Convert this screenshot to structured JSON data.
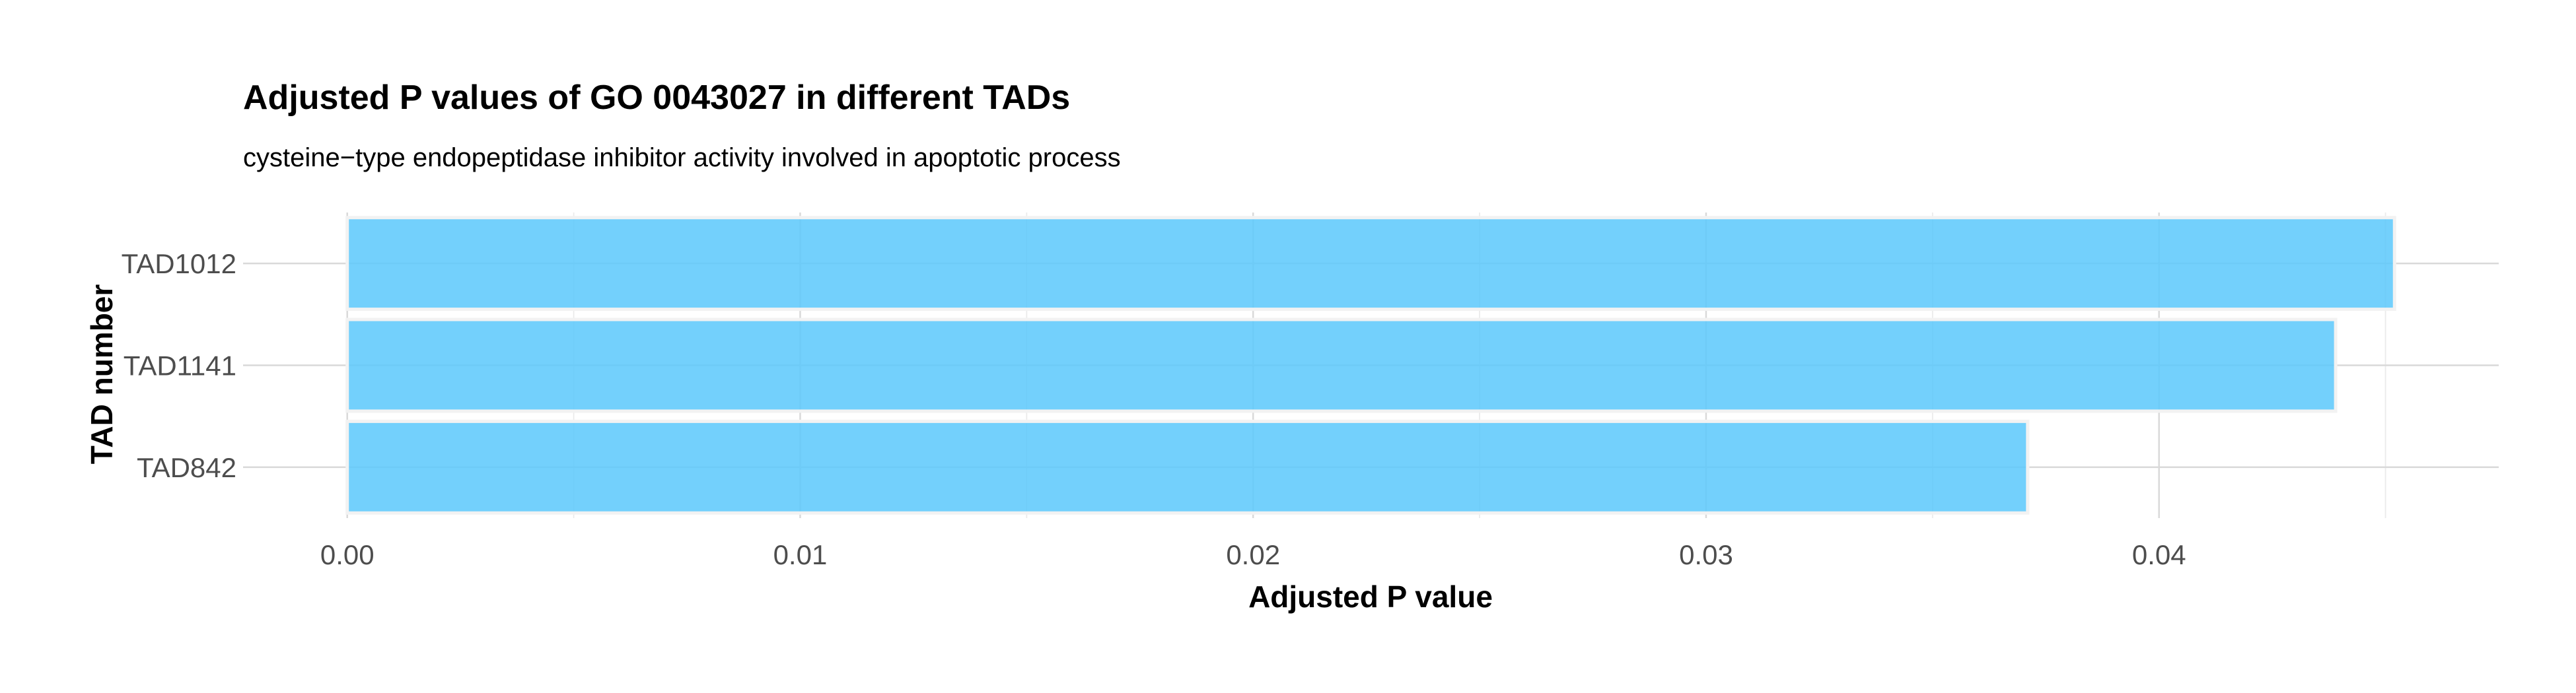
{
  "chart_data": {
    "type": "bar",
    "orientation": "horizontal",
    "title": "Adjusted P values of GO 0043027 in different TADs",
    "subtitle": "cysteine−type endopeptidase inhibitor activity involved in apoptotic process",
    "xlabel": "Adjusted P value",
    "ylabel": "TAD number",
    "categories": [
      "TAD1012",
      "TAD1141",
      "TAD842"
    ],
    "values": [
      0.0452,
      0.0439,
      0.0371
    ],
    "xlim": [
      -0.0023,
      0.0475
    ],
    "xticks": [
      0.0,
      0.01,
      0.02,
      0.03,
      0.04
    ],
    "xtick_labels": [
      "0.00",
      "0.01",
      "0.02",
      "0.03",
      "0.04"
    ],
    "grid": true,
    "legend": "none",
    "bar_color": "#5bc8fb"
  }
}
